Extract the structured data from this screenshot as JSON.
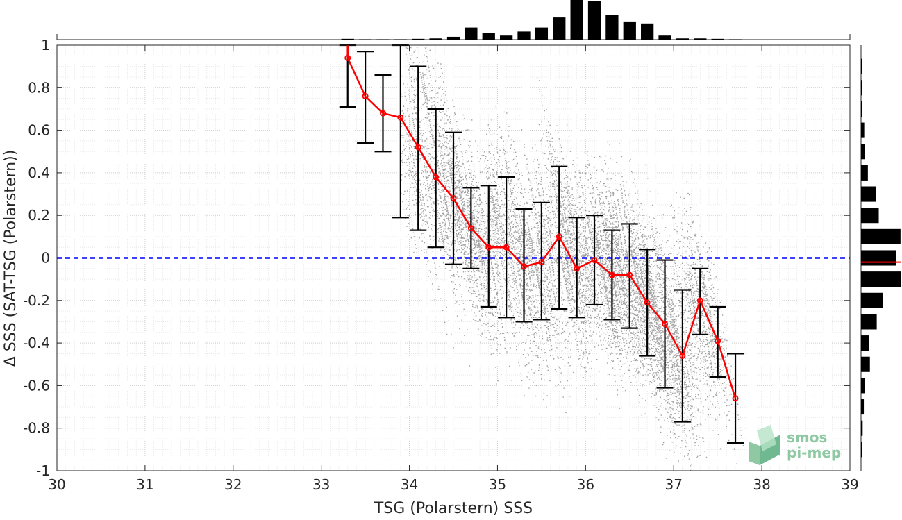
{
  "chart_data": {
    "type": "scatter",
    "title": "",
    "xlabel": "TSG (Polarstern) SSS",
    "ylabel": "Δ SSS (SAT-TSG (Polarstern))",
    "xlim": [
      30,
      39
    ],
    "ylim": [
      -1,
      1
    ],
    "xticks": [
      30,
      31,
      32,
      33,
      34,
      35,
      36,
      37,
      38,
      39
    ],
    "xtick_labels": [
      "30",
      "31",
      "32",
      "33",
      "34",
      "35",
      "36",
      "37",
      "38",
      "39"
    ],
    "yticks": [
      -1,
      -0.8,
      -0.6,
      -0.4,
      -0.2,
      0,
      0.2,
      0.4,
      0.6,
      0.8,
      1
    ],
    "ytick_labels": [
      "-1",
      "-0.8",
      "-0.6",
      "-0.4",
      "-0.2",
      "0",
      "0.2",
      "0.4",
      "0.6",
      "0.8",
      "1"
    ],
    "grid": true,
    "minor_grid": true,
    "reference_line": {
      "y": 0,
      "color": "#0000ff",
      "style": "dashed"
    },
    "binned_mean": {
      "color": "#ff0000",
      "x": [
        33.3,
        33.5,
        33.7,
        33.9,
        34.1,
        34.3,
        34.5,
        34.7,
        34.9,
        35.1,
        35.3,
        35.5,
        35.7,
        35.9,
        36.1,
        36.3,
        36.5,
        36.7,
        36.9,
        37.1,
        37.3,
        37.5,
        37.7
      ],
      "y": [
        0.94,
        0.76,
        0.68,
        0.66,
        0.52,
        0.38,
        0.28,
        0.14,
        0.05,
        0.05,
        -0.04,
        -0.02,
        0.1,
        -0.05,
        -0.01,
        -0.08,
        -0.08,
        -0.21,
        -0.31,
        -0.46,
        -0.2,
        -0.39,
        -0.66
      ],
      "err_low": [
        0.71,
        0.54,
        0.5,
        0.19,
        0.13,
        0.05,
        -0.03,
        -0.05,
        -0.23,
        -0.28,
        -0.3,
        -0.29,
        -0.24,
        -0.28,
        -0.22,
        -0.29,
        -0.33,
        -0.46,
        -0.61,
        -0.77,
        -0.36,
        -0.56,
        -0.87
      ],
      "err_high": [
        1.0,
        0.97,
        0.86,
        1.0,
        0.9,
        0.7,
        0.59,
        0.33,
        0.34,
        0.38,
        0.23,
        0.26,
        0.43,
        0.19,
        0.2,
        0.13,
        0.16,
        0.04,
        -0.01,
        -0.15,
        -0.05,
        -0.23,
        -0.45
      ]
    },
    "errorbar_color": "#000000",
    "scatter_color": "#808080",
    "x_histogram": {
      "bin_centers": [
        33.3,
        33.5,
        33.7,
        33.9,
        34.1,
        34.3,
        34.5,
        34.7,
        34.9,
        35.1,
        35.3,
        35.5,
        35.7,
        35.9,
        36.1,
        36.3,
        36.5,
        36.7,
        36.9,
        37.1,
        37.3,
        37.5,
        37.7
      ],
      "relative_counts": [
        0.02,
        0.01,
        0.01,
        0.01,
        0.02,
        0.03,
        0.07,
        0.3,
        0.17,
        0.1,
        0.2,
        0.3,
        0.55,
        1.0,
        0.95,
        0.62,
        0.45,
        0.4,
        0.1,
        0.03,
        0.03,
        0.02,
        0.01
      ]
    },
    "y_histogram": {
      "bin_centers": [
        0.9,
        0.8,
        0.7,
        0.6,
        0.5,
        0.4,
        0.3,
        0.2,
        0.1,
        0.0,
        -0.1,
        -0.2,
        -0.3,
        -0.4,
        -0.5,
        -0.6,
        -0.7,
        -0.8,
        -0.9
      ],
      "relative_counts": [
        0.02,
        0.03,
        0.02,
        0.08,
        0.1,
        0.17,
        0.37,
        0.44,
        0.98,
        0.87,
        1.0,
        0.54,
        0.39,
        0.2,
        0.22,
        0.09,
        0.07,
        0.04,
        0.02
      ],
      "mean_marker": {
        "y": -0.02,
        "color": "#ff0000"
      }
    }
  },
  "logo": {
    "line1": "smos",
    "line2": "pi-mep",
    "color": "#8ec9a3"
  }
}
